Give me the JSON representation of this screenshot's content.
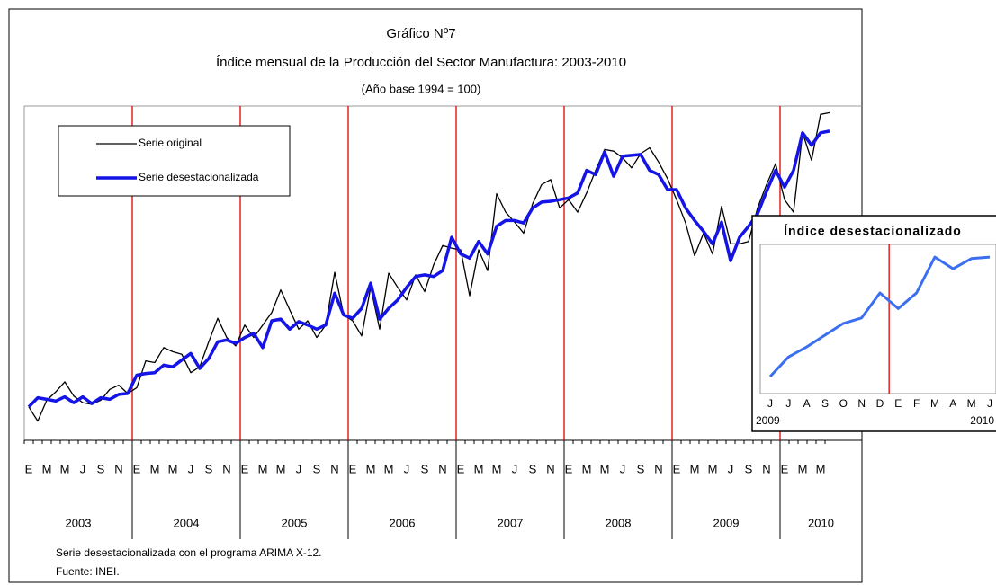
{
  "chart_data": [
    {
      "type": "line",
      "title": "Gráfico Nº7",
      "subtitle": "Índice mensual de la Producción del Sector Manufactura: 2003-2010",
      "base_note": "(Año base 1994 = 100)",
      "categories": [
        "E",
        null,
        "M",
        null,
        "M",
        null,
        "J",
        null,
        "S",
        null,
        "N",
        null,
        "E",
        null,
        "M",
        null,
        "M",
        null,
        "J",
        null,
        "S",
        null,
        "N",
        null,
        "E",
        null,
        "M",
        null,
        "M",
        null,
        "J",
        null,
        "S",
        null,
        "N",
        null,
        "E",
        null,
        "M",
        null,
        "M",
        null,
        "J",
        null,
        "S",
        null,
        "N",
        null,
        "E",
        null,
        "M",
        null,
        "M",
        null,
        "J",
        null,
        "S",
        null,
        "N",
        null,
        "E",
        null,
        "M",
        null,
        "M",
        null,
        "J",
        null,
        "S",
        null,
        "N",
        null,
        "E",
        null,
        "M",
        null,
        "M",
        null,
        "J",
        null,
        "S",
        null,
        "N",
        null,
        "E",
        null,
        "M",
        null,
        "M",
        null
      ],
      "year_labels": [
        "2003",
        "2004",
        "2005",
        "2006",
        "2007",
        "2008",
        "2009",
        "2010"
      ],
      "ylim": [
        80,
        180
      ],
      "series": [
        {
          "name": "Serie original",
          "color": "#000000",
          "width": 1.3,
          "values": [
            90,
            85.75,
            92,
            94.5,
            97.5,
            93.25,
            91.25,
            90.75,
            92,
            95.25,
            96.5,
            94,
            95.75,
            103.75,
            103.25,
            107.75,
            106.5,
            105.75,
            100.25,
            102,
            109.5,
            116.5,
            110.75,
            108.25,
            114.5,
            110.75,
            114.5,
            118.25,
            125,
            119,
            113.25,
            115.75,
            110.75,
            114.5,
            130.25,
            117.5,
            115.75,
            111.25,
            125.75,
            113.25,
            130,
            125.75,
            122,
            129.5,
            124.5,
            132.5,
            138.25,
            137.5,
            137,
            123.25,
            137,
            130.75,
            153.75,
            148.25,
            145.25,
            142,
            150.75,
            156.5,
            158,
            149.5,
            152,
            148.25,
            154,
            160.75,
            167,
            166.5,
            164.5,
            161.5,
            165.75,
            167.5,
            163.25,
            158.25,
            152,
            145,
            135.25,
            142,
            135.75,
            150,
            138.75,
            138.75,
            139.5,
            149.5,
            156.5,
            162.75,
            152,
            148.25,
            172,
            163.75,
            177.5,
            178
          ]
        },
        {
          "name": "Serie desestacionalizada",
          "color": "#1414e6",
          "width": 3.5,
          "values": [
            90,
            92.75,
            92.25,
            91.75,
            93,
            91.25,
            93,
            91,
            92.75,
            92.25,
            93.75,
            94,
            99.5,
            100,
            100.25,
            102.5,
            102,
            104,
            106,
            101.5,
            104.5,
            109.5,
            110,
            109,
            110.75,
            112,
            107.75,
            115.75,
            116.25,
            113.25,
            115.5,
            114.5,
            113.25,
            114.5,
            124,
            117.5,
            116.5,
            119.5,
            127,
            116.25,
            119.5,
            122,
            125.75,
            129,
            129.5,
            129,
            130.75,
            140.75,
            135.75,
            134.5,
            139.5,
            135.75,
            144,
            145.75,
            145.75,
            145,
            149.5,
            151.25,
            151.5,
            152,
            152.5,
            154,
            160.75,
            159.5,
            166.25,
            159,
            165,
            165.25,
            165.5,
            160.75,
            159.5,
            155,
            155,
            149.5,
            145.75,
            142.5,
            138.75,
            145.25,
            133.75,
            140.75,
            144,
            147.75,
            154.5,
            160.75,
            155.75,
            160.75,
            172,
            168.25,
            172,
            172.5
          ]
        }
      ],
      "notes": [
        "Serie desestacionalizada con el programa ARIMA X-12.",
        "Fuente: INEI."
      ]
    },
    {
      "type": "line",
      "title": "Índice desestacionalizado",
      "categories": [
        "J",
        "J",
        "A",
        "S",
        "O",
        "N",
        "D",
        "E",
        "F",
        "M",
        "A",
        "M",
        "J"
      ],
      "year_labels": [
        "2009",
        "2010"
      ],
      "ylim": [
        135,
        170
      ],
      "series": [
        {
          "color": "#3b6ff0",
          "width": 3,
          "values": [
            138,
            143,
            145.6,
            148.6,
            151.6,
            153,
            159.4,
            155.4,
            159.4,
            168.6,
            165.6,
            168.2,
            168.6
          ]
        }
      ]
    }
  ]
}
